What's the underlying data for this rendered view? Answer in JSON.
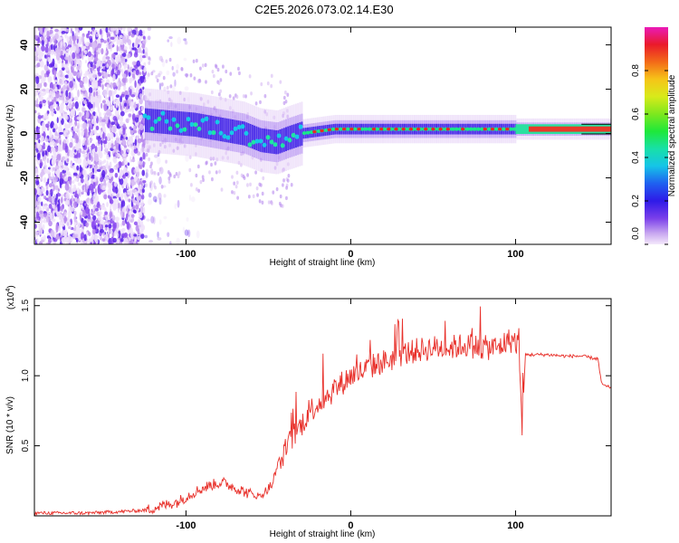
{
  "title": "C2E5.2026.073.02.14.E30",
  "spectrogram": {
    "type": "heatmap",
    "xlabel": "Height of straight line (km)",
    "ylabel": "Frequency (Hz)",
    "xlim": [
      -192,
      158
    ],
    "ylim": [
      -50,
      48
    ],
    "xticks": [
      -100,
      0,
      100
    ],
    "yticks": [
      -40,
      -20,
      0,
      20,
      40
    ],
    "tone_frequency_hz": 2,
    "colorbar": {
      "label": "Normalized spectral amplitude",
      "range": [
        0,
        1
      ],
      "ticks": [
        "0.0",
        "0.2",
        "0.4",
        "0.6",
        "0.8"
      ],
      "tick_values": [
        0.0,
        0.2,
        0.4,
        0.6,
        0.8
      ]
    },
    "ridge": {
      "x": [
        -125,
        -110,
        -95,
        -80,
        -65,
        -55,
        -45,
        -38,
        -30,
        -20,
        -10,
        0,
        10,
        20,
        40,
        60,
        80,
        100,
        120,
        158
      ],
      "y": [
        6,
        5,
        4,
        2,
        0,
        -3,
        -4,
        -2,
        0,
        1,
        2,
        2,
        2,
        2,
        2,
        2,
        2,
        2,
        2,
        2
      ]
    }
  },
  "snr_chart": {
    "type": "line",
    "xlabel": "Height of straight line (km)",
    "ylabel": "SNR (10 * v/v)",
    "scale_label": "(x10",
    "scale_exponent": "4",
    "scale_close": ")",
    "xlim": [
      -192,
      158
    ],
    "ylim": [
      0,
      1.55
    ],
    "xticks": [
      -100,
      0,
      100
    ],
    "yticks": [
      0.5,
      1.0,
      1.5
    ],
    "ytick_labels": [
      "0.5",
      "1.0",
      "1.5"
    ],
    "series": [
      {
        "color": "#e8302a",
        "x": [
          -192,
          -160,
          -140,
          -125,
          -115,
          -105,
          -95,
          -85,
          -78,
          -70,
          -62,
          -55,
          -48,
          -42,
          -36,
          -30,
          -25,
          -20,
          -15,
          -10,
          -5,
          0,
          5,
          10,
          15,
          20,
          25,
          30,
          40,
          50,
          60,
          70,
          80,
          90,
          95,
          100,
          102,
          104,
          106,
          110,
          120,
          130,
          140,
          150,
          152,
          155,
          158
        ],
        "y": [
          0.02,
          0.02,
          0.03,
          0.04,
          0.07,
          0.1,
          0.17,
          0.22,
          0.24,
          0.2,
          0.16,
          0.14,
          0.22,
          0.4,
          0.55,
          0.65,
          0.75,
          0.8,
          0.85,
          0.9,
          0.95,
          1.0,
          1.02,
          1.05,
          1.08,
          1.1,
          1.12,
          1.15,
          1.18,
          1.2,
          1.2,
          1.22,
          1.2,
          1.2,
          1.25,
          1.25,
          1.2,
          0.6,
          1.15,
          1.15,
          1.15,
          1.14,
          1.14,
          1.12,
          0.95,
          0.92,
          0.92
        ]
      }
    ]
  }
}
